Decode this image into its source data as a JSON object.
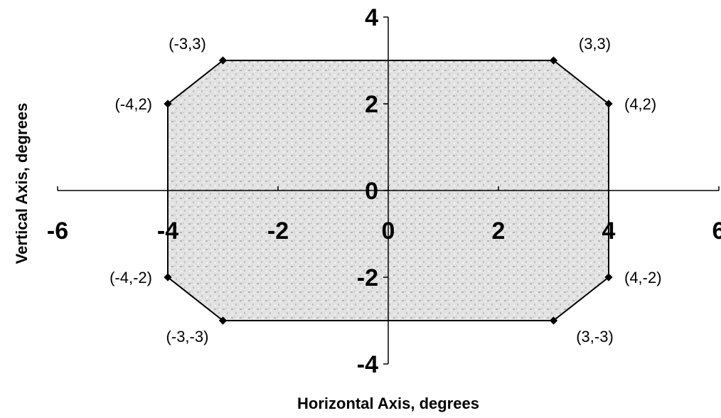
{
  "chart_data": {
    "type": "scatter",
    "xlabel": "Horizontal Axis, degrees",
    "ylabel": "Vertical Axis, degrees",
    "xlim": [
      -6,
      6
    ],
    "ylim": [
      -4,
      4
    ],
    "x_ticks": [
      "-6",
      "-4",
      "-2",
      "0",
      "2",
      "4",
      "6"
    ],
    "y_ticks": [
      "-4",
      "-2",
      "0",
      "2",
      "4"
    ],
    "grid": false,
    "fill_color": "#bdbdbd",
    "line_color": "#000000",
    "series": [
      {
        "x": [
          -3,
          3,
          4,
          4,
          3,
          -3,
          -4,
          -4
        ],
        "y": [
          3,
          3,
          2,
          -2,
          -3,
          -3,
          -2,
          2
        ],
        "labels": [
          "(-3,3)",
          "(3,3)",
          "(4,2)",
          "(4,-2)",
          "(3,-3)",
          "(-3,-3)",
          "(-4,-2)",
          "(-4,2)"
        ]
      }
    ]
  }
}
